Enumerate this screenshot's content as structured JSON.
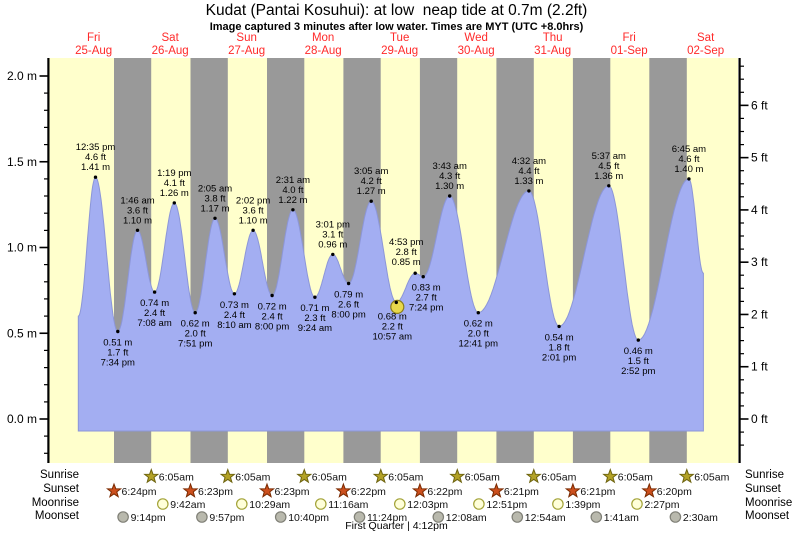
{
  "title": "Kudat (Pantai Kosuhui): at low  neap tide at 0.7m (2.2ft)",
  "subtitle": "Image captured 3 minutes after low water. Times are MYT (UTC +8.0hrs)",
  "colors": {
    "day_bg": "#ffffcc",
    "night_bg": "#999999",
    "tide_fill": "#a3aef2",
    "tide_edge": "#8c96d8",
    "day_label": "#ff2a2a",
    "sunrise_star": "#b3a226",
    "sunrise_star_edge": "#6e6410",
    "sunset_star": "#cc4f1d",
    "sunset_star_edge": "#7a2a00",
    "moonrise_circle": "#ffffd9",
    "moonrise_circle_edge": "#a3a338",
    "moonset_circle": "#b9b9ad",
    "moonset_circle_edge": "#7f7f76",
    "current_marker": "#e8d84b",
    "current_marker_edge": "#8a7d1b"
  },
  "days": [
    {
      "weekday": "Fri",
      "date": "25-Aug"
    },
    {
      "weekday": "Sat",
      "date": "26-Aug"
    },
    {
      "weekday": "Sun",
      "date": "27-Aug"
    },
    {
      "weekday": "Mon",
      "date": "28-Aug"
    },
    {
      "weekday": "Tue",
      "date": "29-Aug"
    },
    {
      "weekday": "Wed",
      "date": "30-Aug"
    },
    {
      "weekday": "Thu",
      "date": "31-Aug"
    },
    {
      "weekday": "Fri",
      "date": "01-Sep"
    },
    {
      "weekday": "Sat",
      "date": "02-Sep"
    }
  ],
  "y_axis_left": {
    "unit": "m",
    "labels": [
      "2.0 m",
      "1.5 m",
      "1.0 m",
      "0.5 m",
      "0.0 m"
    ],
    "values": [
      2.0,
      1.5,
      1.0,
      0.5,
      0.0
    ],
    "minor_step": 0.1
  },
  "y_axis_right": {
    "unit": "ft",
    "labels": [
      "6 ft",
      "5 ft",
      "4 ft",
      "3 ft",
      "2 ft",
      "1 ft",
      "0 ft"
    ],
    "values": [
      6,
      5,
      4,
      3,
      2,
      1,
      0
    ],
    "minor_step": 0.25
  },
  "chart_data": {
    "type": "area",
    "title": "Tide height curve, Fri 25-Aug to Sat 02-Sep",
    "x_unit": "day + local time (MYT)",
    "y_unit": "metres",
    "ylim": [
      -0.26,
      2.1
    ],
    "tide_events": [
      {
        "day": 0,
        "date": "25-Aug",
        "time": "12:35 pm",
        "height_m": 1.41,
        "height_ft": 4.6,
        "type": "high"
      },
      {
        "day": 0,
        "date": "25-Aug",
        "time": "7:34 pm",
        "height_m": 0.51,
        "height_ft": 1.7,
        "type": "low"
      },
      {
        "day": 1,
        "date": "26-Aug",
        "time": "1:46 am",
        "height_m": 1.1,
        "height_ft": 3.6,
        "type": "high"
      },
      {
        "day": 1,
        "date": "26-Aug",
        "time": "7:08 am",
        "height_m": 0.74,
        "height_ft": 2.4,
        "type": "low"
      },
      {
        "day": 1,
        "date": "26-Aug",
        "time": "1:19 pm",
        "height_m": 1.26,
        "height_ft": 4.1,
        "type": "high"
      },
      {
        "day": 1,
        "date": "26-Aug",
        "time": "7:51 pm",
        "height_m": 0.62,
        "height_ft": 2.0,
        "type": "low"
      },
      {
        "day": 2,
        "date": "27-Aug",
        "time": "2:05 am",
        "height_m": 1.17,
        "height_ft": 3.8,
        "type": "high"
      },
      {
        "day": 2,
        "date": "27-Aug",
        "time": "8:10 am",
        "height_m": 0.73,
        "height_ft": 2.4,
        "type": "low"
      },
      {
        "day": 2,
        "date": "27-Aug",
        "time": "2:02 pm",
        "height_m": 1.1,
        "height_ft": 3.6,
        "type": "high"
      },
      {
        "day": 2,
        "date": "27-Aug",
        "time": "8:00 pm",
        "height_m": 0.72,
        "height_ft": 2.4,
        "type": "low"
      },
      {
        "day": 3,
        "date": "28-Aug",
        "time": "2:31 am",
        "height_m": 1.22,
        "height_ft": 4.0,
        "type": "high"
      },
      {
        "day": 3,
        "date": "28-Aug",
        "time": "9:24 am",
        "height_m": 0.71,
        "height_ft": 2.3,
        "type": "low"
      },
      {
        "day": 3,
        "date": "28-Aug",
        "time": "3:01 pm",
        "height_m": 0.96,
        "height_ft": 3.1,
        "type": "high"
      },
      {
        "day": 3,
        "date": "28-Aug",
        "time": "8:00 pm",
        "height_m": 0.79,
        "height_ft": 2.6,
        "type": "low"
      },
      {
        "day": 4,
        "date": "29-Aug",
        "time": "3:05 am",
        "height_m": 1.27,
        "height_ft": 4.2,
        "type": "high"
      },
      {
        "day": 4,
        "date": "29-Aug",
        "time": "10:57 am",
        "height_m": 0.68,
        "height_ft": 2.2,
        "type": "low"
      },
      {
        "day": 4,
        "date": "29-Aug",
        "time": "4:53 pm",
        "height_m": 0.85,
        "height_ft": 2.8,
        "type": "high"
      },
      {
        "day": 4,
        "date": "29-Aug",
        "time": "7:24 pm",
        "height_m": 0.83,
        "height_ft": 2.7,
        "type": "low"
      },
      {
        "day": 5,
        "date": "30-Aug",
        "time": "3:43 am",
        "height_m": 1.3,
        "height_ft": 4.3,
        "type": "high"
      },
      {
        "day": 5,
        "date": "30-Aug",
        "time": "12:41 pm",
        "height_m": 0.62,
        "height_ft": 2.0,
        "type": "low"
      },
      {
        "day": 6,
        "date": "31-Aug",
        "time": "4:32 am",
        "height_m": 1.33,
        "height_ft": 4.4,
        "type": "high"
      },
      {
        "day": 6,
        "date": "31-Aug",
        "time": "2:01 pm",
        "height_m": 0.54,
        "height_ft": 1.8,
        "type": "low"
      },
      {
        "day": 7,
        "date": "01-Sep",
        "time": "5:37 am",
        "height_m": 1.36,
        "height_ft": 4.5,
        "type": "high"
      },
      {
        "day": 7,
        "date": "01-Sep",
        "time": "2:52 pm",
        "height_m": 0.46,
        "height_ft": 1.5,
        "type": "low"
      },
      {
        "day": 8,
        "date": "02-Sep",
        "time": "6:45 am",
        "height_m": 1.4,
        "height_ft": 4.6,
        "type": "high"
      }
    ],
    "current_position": {
      "day": 4,
      "date": "29-Aug",
      "time": "10:57 am",
      "height_m": 0.68
    },
    "curve_start": {
      "day": 0,
      "hour": 7.2,
      "height_m": 0.6
    },
    "curve_end": {
      "day": 8,
      "hour": 11.3,
      "height_m": 0.85
    }
  },
  "astro": {
    "row_labels": [
      "Sunrise",
      "Sunset",
      "Moonrise",
      "Moonset"
    ],
    "sunrise": [
      {
        "day": 1,
        "time": "6:05am"
      },
      {
        "day": 2,
        "time": "6:05am"
      },
      {
        "day": 3,
        "time": "6:05am"
      },
      {
        "day": 4,
        "time": "6:05am"
      },
      {
        "day": 5,
        "time": "6:05am"
      },
      {
        "day": 6,
        "time": "6:05am"
      },
      {
        "day": 7,
        "time": "6:05am"
      },
      {
        "day": 8,
        "time": "6:05am"
      }
    ],
    "sunset": [
      {
        "day": 0,
        "time": "6:24pm"
      },
      {
        "day": 1,
        "time": "6:23pm"
      },
      {
        "day": 2,
        "time": "6:23pm"
      },
      {
        "day": 3,
        "time": "6:22pm"
      },
      {
        "day": 4,
        "time": "6:22pm"
      },
      {
        "day": 5,
        "time": "6:21pm"
      },
      {
        "day": 6,
        "time": "6:21pm"
      },
      {
        "day": 7,
        "time": "6:20pm"
      }
    ],
    "moonrise": [
      {
        "day": 1,
        "time": "9:42am"
      },
      {
        "day": 2,
        "time": "10:29am"
      },
      {
        "day": 3,
        "time": "11:16am"
      },
      {
        "day": 4,
        "time": "12:03pm"
      },
      {
        "day": 5,
        "time": "12:51pm"
      },
      {
        "day": 6,
        "time": "1:39pm"
      },
      {
        "day": 7,
        "time": "2:27pm"
      }
    ],
    "moonset": [
      {
        "day": 0,
        "time": "9:14pm"
      },
      {
        "day": 1,
        "time": "9:57pm"
      },
      {
        "day": 2,
        "time": "10:40pm"
      },
      {
        "day": 3,
        "time": "11:24pm"
      },
      {
        "day": 5,
        "time": "12:08am"
      },
      {
        "day": 6,
        "time": "12:54am"
      },
      {
        "day": 7,
        "time": "1:41am"
      },
      {
        "day": 8,
        "time": "2:30am"
      }
    ]
  },
  "footer": {
    "moon_phase": "First Quarter | 4:12pm"
  }
}
